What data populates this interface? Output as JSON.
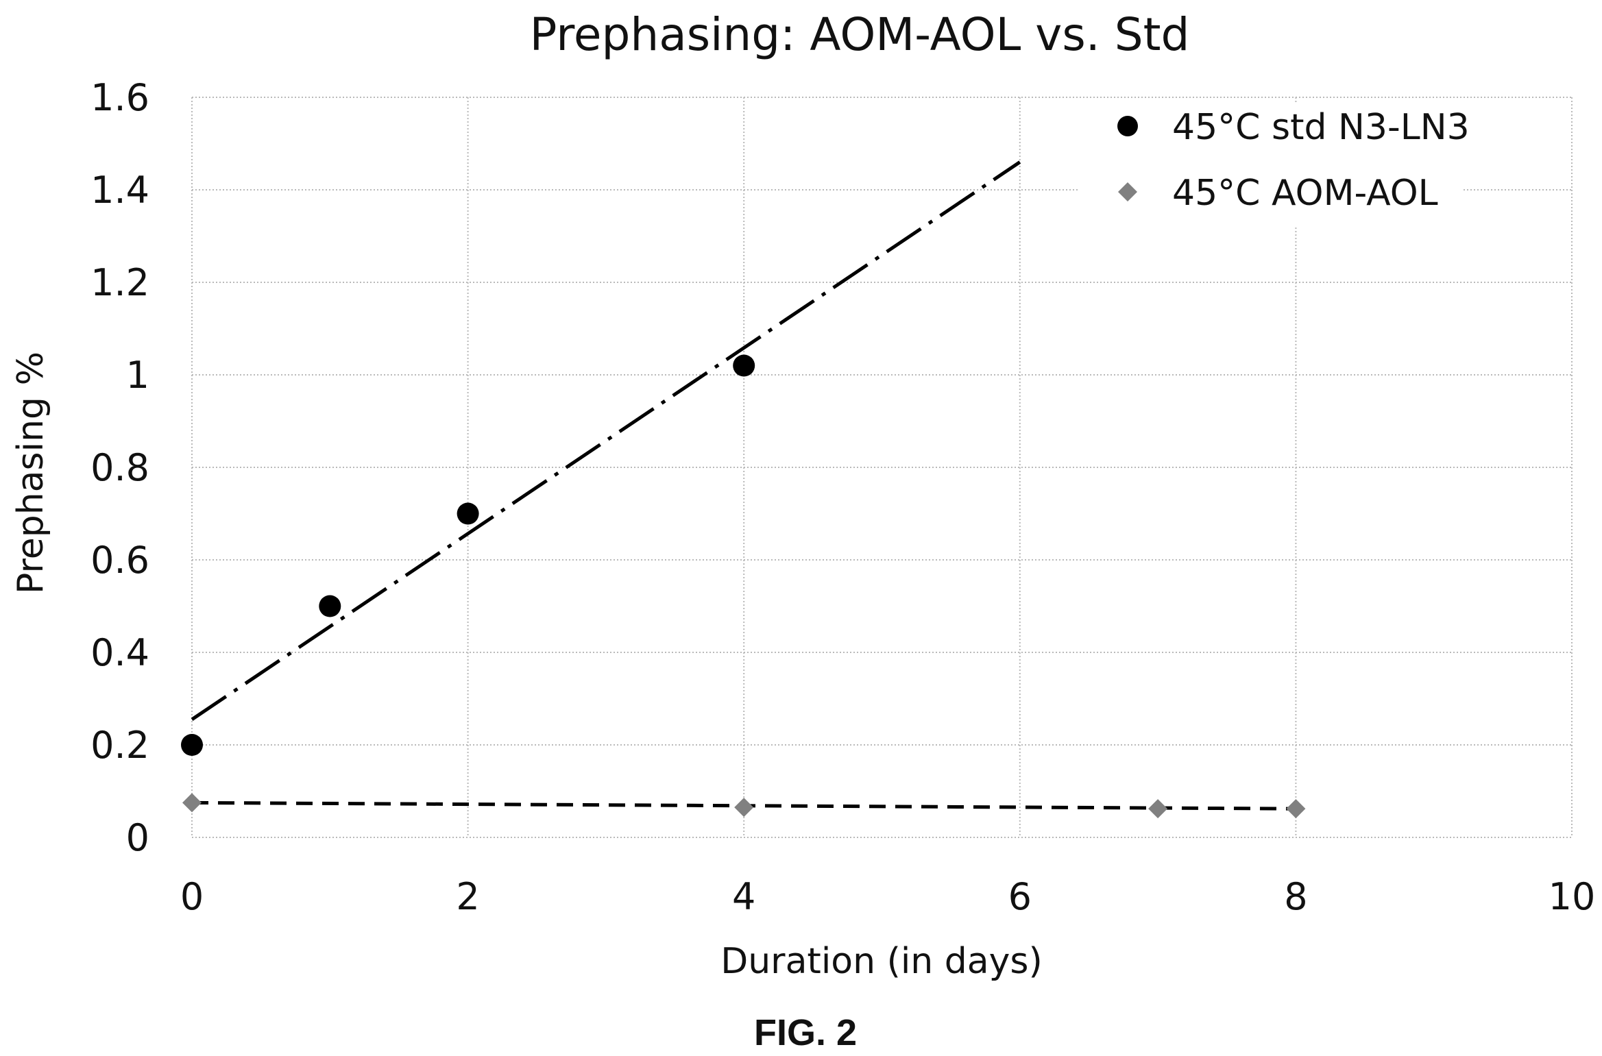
{
  "figure_caption": "FIG. 2",
  "chart_data": {
    "type": "scatter",
    "title": "Prephasing: AOM-AOL vs. Std",
    "xlabel": "Duration (in days)",
    "ylabel": "Prephasing %",
    "xlim": [
      0,
      10
    ],
    "ylim": [
      0,
      1.6
    ],
    "xticks": [
      "0",
      "2",
      "4",
      "6",
      "8",
      "10"
    ],
    "yticks": [
      "0",
      "0.2",
      "0.4",
      "0.6",
      "0.8",
      "1",
      "1.2",
      "1.4",
      "1.6"
    ],
    "grid": true,
    "legend_position": "top-right",
    "series": [
      {
        "name": "45°C std N3-LN3",
        "marker": "circle",
        "color": "#000000",
        "points": [
          {
            "x": 0,
            "y": 0.2
          },
          {
            "x": 1,
            "y": 0.5
          },
          {
            "x": 2,
            "y": 0.7
          },
          {
            "x": 4,
            "y": 1.02
          }
        ],
        "trendline": {
          "style": "dash-dot",
          "color": "#000000",
          "points": [
            {
              "x": 0,
              "y": 0.255
            },
            {
              "x": 6,
              "y": 1.46
            }
          ]
        }
      },
      {
        "name": "45°C AOM-AOL",
        "marker": "diamond",
        "color": "#808080",
        "points": [
          {
            "x": 0,
            "y": 0.075
          },
          {
            "x": 4,
            "y": 0.065
          },
          {
            "x": 7,
            "y": 0.062
          },
          {
            "x": 8,
            "y": 0.062
          }
        ],
        "trendline": {
          "style": "dashed",
          "color": "#000000",
          "points": [
            {
              "x": 0,
              "y": 0.075
            },
            {
              "x": 8,
              "y": 0.062
            }
          ]
        }
      }
    ]
  }
}
